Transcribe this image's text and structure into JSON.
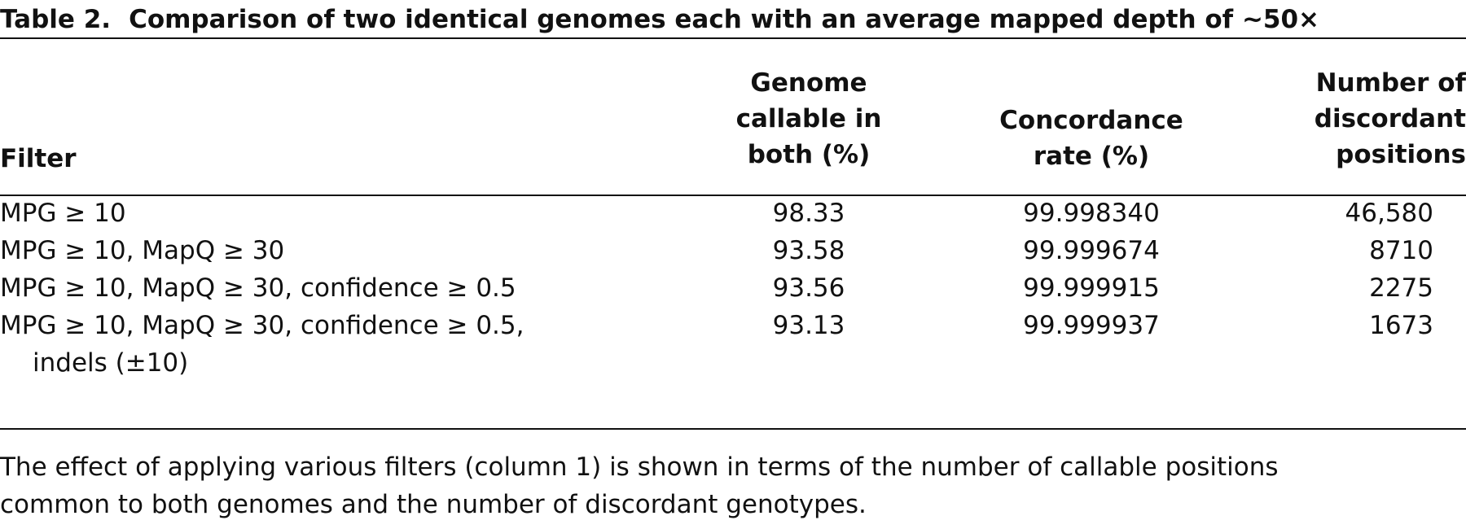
{
  "caption": {
    "label": "Table 2.",
    "title": "Comparison of two identical genomes each with an average mapped depth of ~50×"
  },
  "table": {
    "headers": {
      "filter": "Filter",
      "callable": "Genome\ncallable in\nboth (%)",
      "concordance": "Concordance\nrate (%)",
      "discordant": "Number of\ndiscordant\npositions"
    },
    "rows": [
      {
        "filter": "MPG ≥ 10",
        "filter_cont": "",
        "callable": "98.33",
        "concordance": "99.998340",
        "discordant": "46,580"
      },
      {
        "filter": "MPG ≥ 10, MapQ ≥ 30",
        "filter_cont": "",
        "callable": "93.58",
        "concordance": "99.999674",
        "discordant": "8710"
      },
      {
        "filter": "MPG ≥ 10, MapQ ≥ 30, confidence ≥ 0.5",
        "filter_cont": "",
        "callable": "93.56",
        "concordance": "99.999915",
        "discordant": "2275"
      },
      {
        "filter": "MPG ≥ 10, MapQ ≥ 30, confidence ≥ 0.5,",
        "filter_cont": "indels (±10)",
        "callable": "93.13",
        "concordance": "99.999937",
        "discordant": "1673"
      }
    ]
  },
  "footnote": {
    "line1": "The effect of applying various filters (column 1) is shown in terms of the number of callable positions",
    "line2": "common to both genomes and the number of discordant genotypes."
  }
}
